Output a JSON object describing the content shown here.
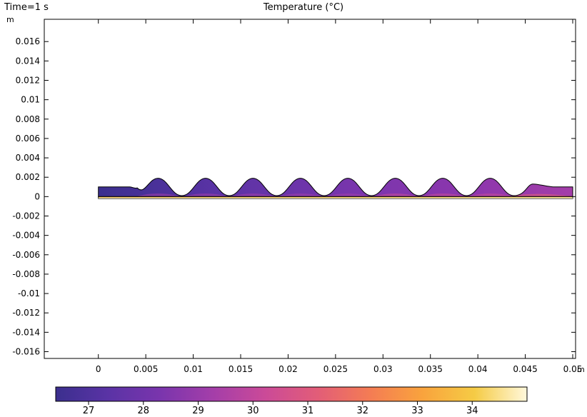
{
  "chart_data": {
    "type": "heatmap",
    "time_label": "Time=1 s",
    "title": "Temperature (°C)",
    "xunit": "m",
    "yunit": "m",
    "xlim": [
      -0.0057,
      0.0503
    ],
    "ylim": [
      -0.0167,
      0.0183
    ],
    "xticks": [
      0,
      0.005,
      0.01,
      0.015,
      0.02,
      0.025,
      0.03,
      0.035,
      0.04,
      0.045,
      0.05
    ],
    "xtick_labels": [
      "0",
      "0.005",
      "0.01",
      "0.015",
      "0.02",
      "0.025",
      "0.03",
      "0.035",
      "0.04",
      "0.045",
      "0.05"
    ],
    "yticks": [
      0.016,
      0.014,
      0.012,
      0.01,
      0.008,
      0.006,
      0.004,
      0.002,
      0,
      -0.002,
      -0.004,
      -0.006,
      -0.008,
      -0.01,
      -0.012,
      -0.014,
      -0.016
    ],
    "ytick_labels": [
      "0.016",
      "0.014",
      "0.012",
      "0.01",
      "0.008",
      "0.006",
      "0.004",
      "0.002",
      "0",
      "-0.002",
      "-0.004",
      "-0.006",
      "-0.008",
      "-0.01",
      "-0.012",
      "-0.014",
      "-0.016"
    ],
    "geometry": {
      "domain_x": [
        0,
        0.05
      ],
      "channel_top_y": 0.001,
      "wall_bottom_y": -0.0002,
      "bump_centers_x": [
        0.0063,
        0.0113,
        0.0163,
        0.0213,
        0.0263,
        0.0313,
        0.0363,
        0.0413
      ],
      "bump_peak_y": 0.0019,
      "bump_trough_y": 0.0001,
      "last_bump_center_x": 0.0458,
      "last_bump_peak_y": 0.0013
    },
    "colorbar": {
      "min": 26.4,
      "max": 35.0,
      "ticks": [
        27,
        28,
        29,
        30,
        31,
        32,
        33,
        34
      ],
      "tick_labels": [
        "27",
        "28",
        "29",
        "30",
        "31",
        "32",
        "33",
        "34"
      ],
      "colors": [
        "#3b2f8e",
        "#5a33a5",
        "#7a35ad",
        "#a43ea9",
        "#cb4a98",
        "#e25d78",
        "#f47c54",
        "#f9a33d",
        "#f5cb45",
        "#fff8dc"
      ]
    },
    "colors": {
      "wall_hot": "#f2c144",
      "fluid_cool": "#4a32a0"
    }
  }
}
